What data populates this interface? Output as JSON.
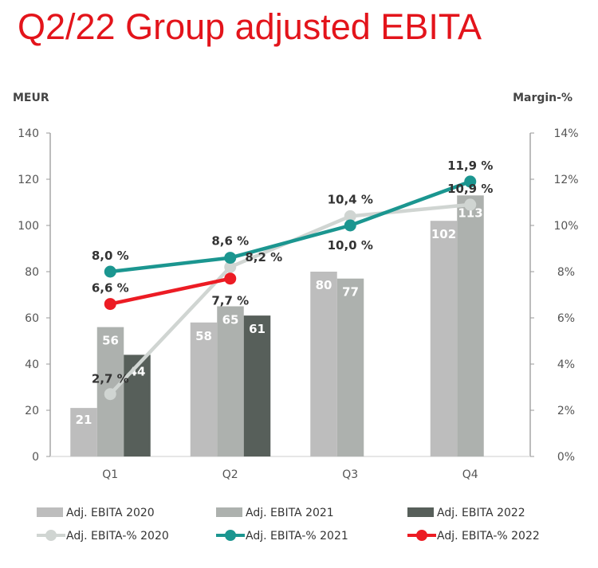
{
  "title": "Q2/22 Group adjusted EBITA",
  "chart_data": {
    "type": "bar+line",
    "categories": [
      "Q1",
      "Q2",
      "Q3",
      "Q4"
    ],
    "ylabel": "MEUR",
    "y2label": "Margin-%",
    "ylim": [
      0,
      140
    ],
    "yticks": [
      "0",
      "20",
      "40",
      "60",
      "80",
      "100",
      "120",
      "140"
    ],
    "y2lim": [
      0,
      14
    ],
    "y2ticks": [
      "0%",
      "2%",
      "4%",
      "6%",
      "8%",
      "10%",
      "12%",
      "14%"
    ],
    "grid": false,
    "legend": "bottom",
    "bar_series": [
      {
        "name": "Adj. EBITA 2020",
        "color": "#bdbdbd",
        "values": [
          21,
          58,
          80,
          102
        ],
        "labels": [
          "21",
          "58",
          "80",
          "102"
        ]
      },
      {
        "name": "Adj. EBITA 2021",
        "color": "#adb1ae",
        "values": [
          56,
          65,
          77,
          113
        ],
        "labels": [
          "56",
          "65",
          "77",
          "113"
        ]
      },
      {
        "name": "Adj. EBITA 2022",
        "color": "#575f5a",
        "values": [
          44,
          61,
          null,
          null
        ],
        "labels": [
          "44",
          "61",
          "",
          ""
        ]
      }
    ],
    "line_series": [
      {
        "name": "Adj. EBITA-% 2020",
        "color": "#d0d5d2",
        "values": [
          2.7,
          8.2,
          10.4,
          10.9
        ],
        "labels": [
          "2,7 %",
          "8,2 %",
          "10,4 %",
          "10,9 %"
        ]
      },
      {
        "name": "Adj. EBITA-% 2021",
        "color": "#1b9690",
        "values": [
          8.0,
          8.6,
          10.0,
          11.9
        ],
        "labels": [
          "8,0 %",
          "8,6 %",
          "10,0 %",
          "11,9 %"
        ]
      },
      {
        "name": "Adj. EBITA-% 2022",
        "color": "#ec1c24",
        "values": [
          6.6,
          7.7,
          null,
          null
        ],
        "labels": [
          "6,6 %",
          "7,7 %",
          "",
          ""
        ]
      }
    ]
  }
}
